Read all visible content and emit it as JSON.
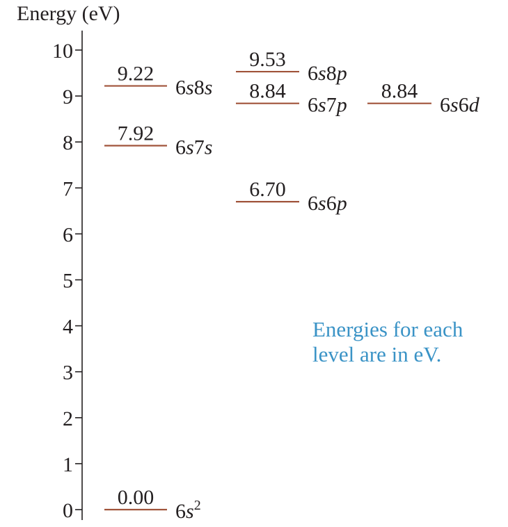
{
  "diagram": {
    "axis_title": "Energy (eV)",
    "ticks": [
      0,
      1,
      2,
      3,
      4,
      5,
      6,
      7,
      8,
      9,
      10
    ],
    "level_color": "#a0533a",
    "axis_color": "#231f20",
    "note_color": "#3a93c6",
    "levels": [
      {
        "column": 0,
        "energy": 0.0,
        "value_label": "0.00",
        "config_prefix": "6",
        "config_letter": "s",
        "config_suffix": "",
        "config_sup": "2"
      },
      {
        "column": 0,
        "energy": 7.92,
        "value_label": "7.92",
        "config_prefix": "6",
        "config_letter": "s",
        "config_suffix": "7",
        "config_letter2": "s"
      },
      {
        "column": 0,
        "energy": 9.22,
        "value_label": "9.22",
        "config_prefix": "6",
        "config_letter": "s",
        "config_suffix": "8",
        "config_letter2": "s"
      },
      {
        "column": 1,
        "energy": 6.7,
        "value_label": "6.70",
        "config_prefix": "6",
        "config_letter": "s",
        "config_suffix": "6",
        "config_letter2": "p"
      },
      {
        "column": 1,
        "energy": 8.84,
        "value_label": "8.84",
        "config_prefix": "6",
        "config_letter": "s",
        "config_suffix": "7",
        "config_letter2": "p"
      },
      {
        "column": 1,
        "energy": 9.53,
        "value_label": "9.53",
        "config_prefix": "6",
        "config_letter": "s",
        "config_suffix": "8",
        "config_letter2": "p"
      },
      {
        "column": 2,
        "energy": 8.84,
        "value_label": "8.84",
        "config_prefix": "6",
        "config_letter": "s",
        "config_suffix": "6",
        "config_letter2": "d"
      }
    ],
    "note_lines": [
      "Energies for each",
      "level are in eV."
    ]
  }
}
